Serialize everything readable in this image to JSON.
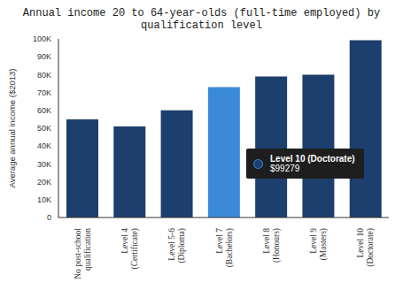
{
  "chart_data": {
    "type": "bar",
    "title": "Annual income 20 to 64-year-olds (full-time employed) by qualification level",
    "y_label": "Average annual income ($2013)",
    "categories": [
      "No post-school qualification",
      "Level 4 (Certificate)",
      "Level 5-6 (Diploma)",
      "Level 7 (Bachelors)",
      "Level 8 (Honours)",
      "Level 9 (Masters)",
      "Level 10 (Doctorate)"
    ],
    "values": [
      55000,
      51000,
      60000,
      73000,
      79000,
      80000,
      99279
    ],
    "colors": [
      "#1d3f6e",
      "#1d3f6e",
      "#1d3f6e",
      "#3a8ad8",
      "#1d3f6e",
      "#1d3f6e",
      "#1d3f6e"
    ],
    "ylim": [
      0,
      100000
    ],
    "yticks": [
      0,
      {
        "value": 10000,
        "label": "10K"
      },
      {
        "value": 20000,
        "label": "20K"
      },
      {
        "value": 30000,
        "label": "30K"
      },
      {
        "value": 40000,
        "label": "40K"
      },
      {
        "value": 50000,
        "label": "50K"
      },
      {
        "value": 60000,
        "label": "60K"
      },
      {
        "value": 70000,
        "label": "70K"
      },
      {
        "value": 80000,
        "label": "80K"
      },
      {
        "value": 90000,
        "label": "90K"
      },
      {
        "value": 100000,
        "label": "100K"
      }
    ],
    "grid": false,
    "annotations": [
      {
        "label": "Level 10 (Doctorate)",
        "text": "$99279"
      }
    ]
  }
}
